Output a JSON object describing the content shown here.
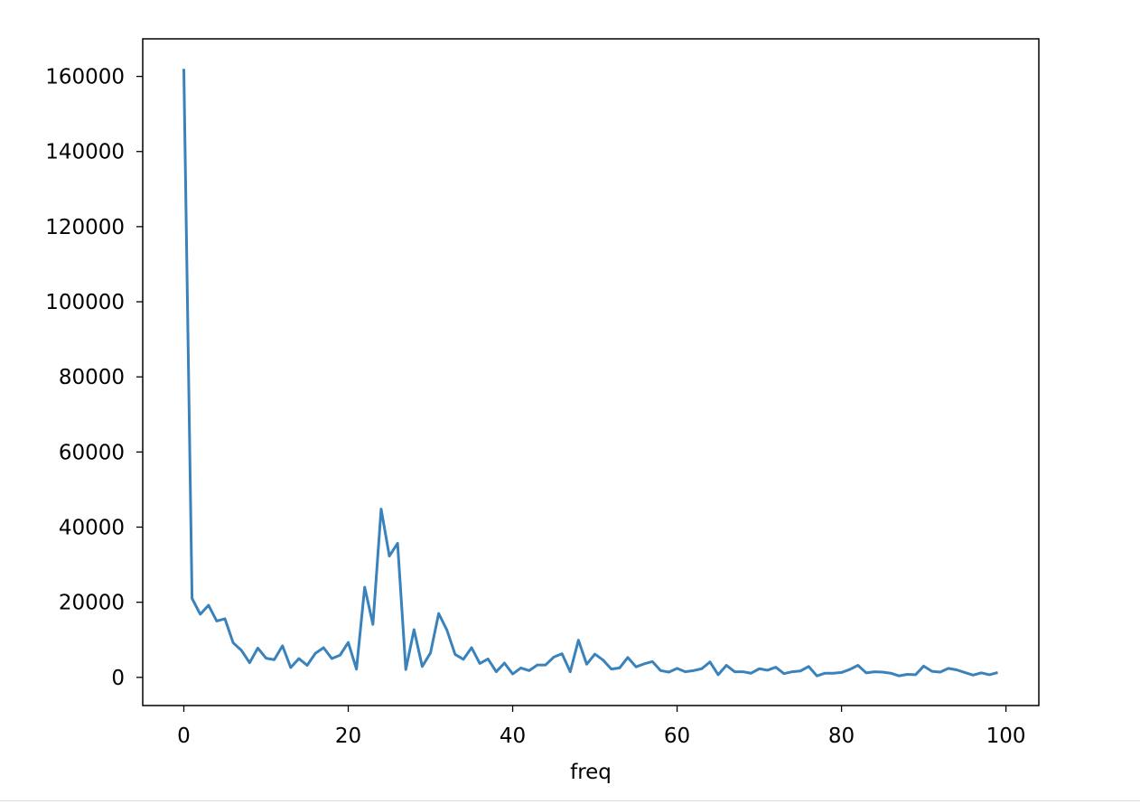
{
  "chart_data": {
    "type": "line",
    "title": "",
    "xlabel": "freq",
    "ylabel": "",
    "xlim": [
      -5,
      104
    ],
    "ylim": [
      -7500,
      170000
    ],
    "xticks": [
      0,
      20,
      40,
      60,
      80,
      100
    ],
    "yticks": [
      0,
      20000,
      40000,
      60000,
      80000,
      100000,
      120000,
      140000,
      160000
    ],
    "xtick_labels": [
      "0",
      "20",
      "40",
      "60",
      "80",
      "100"
    ],
    "ytick_labels": [
      "0",
      "20000",
      "40000",
      "60000",
      "80000",
      "100000",
      "120000",
      "140000",
      "160000"
    ],
    "grid": false,
    "legend": "none",
    "series": [
      {
        "color": "#3a82bb",
        "x": [
          0,
          1,
          2,
          3,
          4,
          5,
          6,
          7,
          8,
          9,
          10,
          11,
          12,
          13,
          14,
          15,
          16,
          17,
          18,
          19,
          20,
          21,
          22,
          23,
          24,
          25,
          26,
          27,
          28,
          29,
          30,
          31,
          32,
          33,
          34,
          35,
          36,
          37,
          38,
          39,
          40,
          41,
          42,
          43,
          44,
          45,
          46,
          47,
          48,
          49,
          50,
          51,
          52,
          53,
          54,
          55,
          56,
          57,
          58,
          59,
          60,
          61,
          62,
          63,
          64,
          65,
          66,
          67,
          68,
          69,
          70,
          71,
          72,
          73,
          74,
          75,
          76,
          77,
          78,
          79,
          80,
          81,
          82,
          83,
          84,
          85,
          86,
          87,
          88,
          89,
          90,
          91,
          92,
          93,
          94,
          95,
          96,
          97,
          98,
          99
        ],
        "y": [
          162000,
          21000,
          16800,
          19200,
          15000,
          15600,
          9200,
          7200,
          3900,
          7800,
          5100,
          4700,
          8400,
          2600,
          5000,
          3200,
          6400,
          7900,
          5000,
          5900,
          9300,
          2200,
          24000,
          14100,
          44800,
          32300,
          35700,
          2100,
          12700,
          2900,
          6500,
          17000,
          12600,
          6100,
          4800,
          7900,
          3700,
          4900,
          1500,
          3800,
          900,
          2500,
          1800,
          3300,
          3300,
          5400,
          6300,
          1500,
          9900,
          3500,
          6200,
          4600,
          2200,
          2500,
          5300,
          2800,
          3600,
          4200,
          1800,
          1400,
          2400,
          1500,
          1800,
          2300,
          4100,
          700,
          3200,
          1500,
          1500,
          1100,
          2300,
          1900,
          2700,
          1000,
          1500,
          1700,
          2900,
          400,
          1100,
          1100,
          1300,
          2100,
          3200,
          1200,
          1500,
          1400,
          1100,
          400,
          800,
          700,
          3000,
          1600,
          1400,
          2400,
          2000,
          1300,
          600,
          1200,
          700,
          1300
        ]
      }
    ]
  }
}
